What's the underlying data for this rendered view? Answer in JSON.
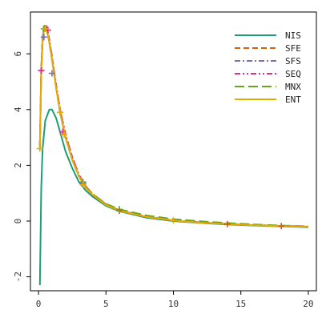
{
  "chart_data": {
    "type": "line",
    "title": "",
    "xlabel": "",
    "ylabel": "",
    "xlim": [
      -0.6,
      20.6
    ],
    "ylim": [
      -2.5,
      7.5
    ],
    "xticks": [
      0,
      5,
      10,
      15,
      20
    ],
    "yticks": [
      -2,
      0,
      2,
      4,
      6
    ],
    "grid": false,
    "legend_position": "top-right",
    "series": [
      {
        "name": "NIS",
        "color": "#1b9e77",
        "dash": "solid",
        "x": [
          0.1,
          0.2,
          0.3,
          0.5,
          0.8,
          1.0,
          1.3,
          1.6,
          2.0,
          2.5,
          3.0,
          3.5,
          4.0,
          5.0,
          6.0,
          8.0,
          10.0,
          12.0,
          14.0,
          16.0,
          18.0,
          20.0
        ],
        "y": [
          -2.3,
          1.2,
          2.6,
          3.6,
          4.0,
          4.0,
          3.7,
          3.2,
          2.5,
          1.9,
          1.4,
          1.1,
          0.88,
          0.55,
          0.35,
          0.12,
          0.0,
          -0.07,
          -0.12,
          -0.16,
          -0.19,
          -0.22
        ],
        "markers_x": [],
        "markers_y": []
      },
      {
        "name": "SFE",
        "color": "#d95f02",
        "dash": "dashed",
        "x": [
          0.1,
          0.2,
          0.3,
          0.4,
          0.6,
          0.8,
          1.0,
          1.3,
          1.6,
          2.0,
          2.5,
          3.0,
          3.5,
          4.0,
          5.0,
          6.0,
          8.0,
          10.0,
          12.0,
          14.0,
          16.0,
          18.0,
          20.0
        ],
        "y": [
          2.7,
          5.5,
          6.6,
          7.0,
          6.9,
          6.4,
          5.8,
          4.8,
          3.9,
          3.0,
          2.2,
          1.6,
          1.2,
          0.95,
          0.58,
          0.37,
          0.15,
          0.02,
          -0.06,
          -0.11,
          -0.15,
          -0.18,
          -0.21
        ],
        "markers_x": [
          6.0,
          14.0,
          18.0
        ],
        "markers_y": [
          0.37,
          -0.11,
          -0.18
        ]
      },
      {
        "name": "SFS",
        "color": "#7570b3",
        "dash": "dashdot",
        "x": [
          0.1,
          0.2,
          0.3,
          0.4,
          0.6,
          0.8,
          1.0,
          1.3,
          1.6,
          2.0,
          2.5,
          3.0,
          3.5,
          4.0,
          5.0,
          6.0,
          8.0,
          10.0,
          12.0,
          14.0,
          16.0,
          18.0,
          20.0
        ],
        "y": [
          2.7,
          5.4,
          6.5,
          7.0,
          7.0,
          6.5,
          5.9,
          4.9,
          4.0,
          3.1,
          2.3,
          1.65,
          1.25,
          0.97,
          0.6,
          0.38,
          0.16,
          0.03,
          -0.05,
          -0.1,
          -0.14,
          -0.17,
          -0.2
        ],
        "markers_x": [
          0.2,
          0.4,
          1.0,
          3.3
        ],
        "markers_y": [
          5.4,
          6.6,
          5.3,
          1.35
        ]
      },
      {
        "name": "SEQ",
        "color": "#e7298a",
        "dash": "dashdotdot",
        "x": [
          0.1,
          0.2,
          0.3,
          0.4,
          0.6,
          0.8,
          1.0,
          1.3,
          1.6,
          2.0,
          2.5,
          3.0,
          3.5,
          4.0,
          5.0,
          6.0,
          8.0,
          10.0,
          12.0,
          14.0,
          16.0,
          18.0,
          20.0
        ],
        "y": [
          2.7,
          5.4,
          6.5,
          6.9,
          6.95,
          6.5,
          5.9,
          4.9,
          4.0,
          3.1,
          2.3,
          1.65,
          1.25,
          0.97,
          0.6,
          0.38,
          0.16,
          0.03,
          -0.05,
          -0.1,
          -0.14,
          -0.17,
          -0.2
        ],
        "markers_x": [
          0.2,
          0.7,
          1.8
        ],
        "markers_y": [
          5.4,
          6.85,
          3.2
        ]
      },
      {
        "name": "MNX",
        "color": "#66a61e",
        "dash": "longdash",
        "x": [
          0.1,
          0.2,
          0.3,
          0.4,
          0.6,
          0.8,
          1.0,
          1.3,
          1.6,
          2.0,
          2.5,
          3.0,
          3.5,
          4.0,
          5.0,
          6.0,
          8.0,
          10.0,
          12.0,
          14.0,
          16.0,
          18.0,
          20.0
        ],
        "y": [
          2.6,
          5.3,
          6.5,
          6.9,
          6.9,
          6.4,
          5.8,
          4.8,
          3.9,
          3.0,
          2.2,
          1.6,
          1.2,
          0.98,
          0.62,
          0.42,
          0.2,
          0.07,
          -0.01,
          -0.07,
          -0.12,
          -0.16,
          -0.19
        ],
        "markers_x": [
          0.4,
          1.6,
          3.3,
          6.0
        ],
        "markers_y": [
          6.9,
          3.9,
          1.4,
          0.42
        ]
      },
      {
        "name": "ENT",
        "color": "#e6ab02",
        "dash": "solid",
        "x": [
          0.1,
          0.2,
          0.3,
          0.4,
          0.6,
          0.8,
          1.0,
          1.3,
          1.6,
          2.0,
          2.5,
          3.0,
          3.5,
          4.0,
          5.0,
          6.0,
          8.0,
          10.0,
          12.0,
          14.0,
          16.0,
          18.0,
          20.0
        ],
        "y": [
          2.6,
          5.3,
          6.4,
          6.85,
          6.9,
          6.4,
          5.8,
          4.8,
          3.9,
          3.0,
          2.2,
          1.6,
          1.2,
          0.95,
          0.58,
          0.37,
          0.15,
          0.02,
          -0.06,
          -0.11,
          -0.15,
          -0.18,
          -0.21
        ],
        "markers_x": [
          0.1,
          0.5,
          1.6,
          1.9,
          3.3,
          10.0
        ],
        "markers_y": [
          2.6,
          6.9,
          3.9,
          3.1,
          1.3,
          0.02
        ]
      }
    ]
  }
}
